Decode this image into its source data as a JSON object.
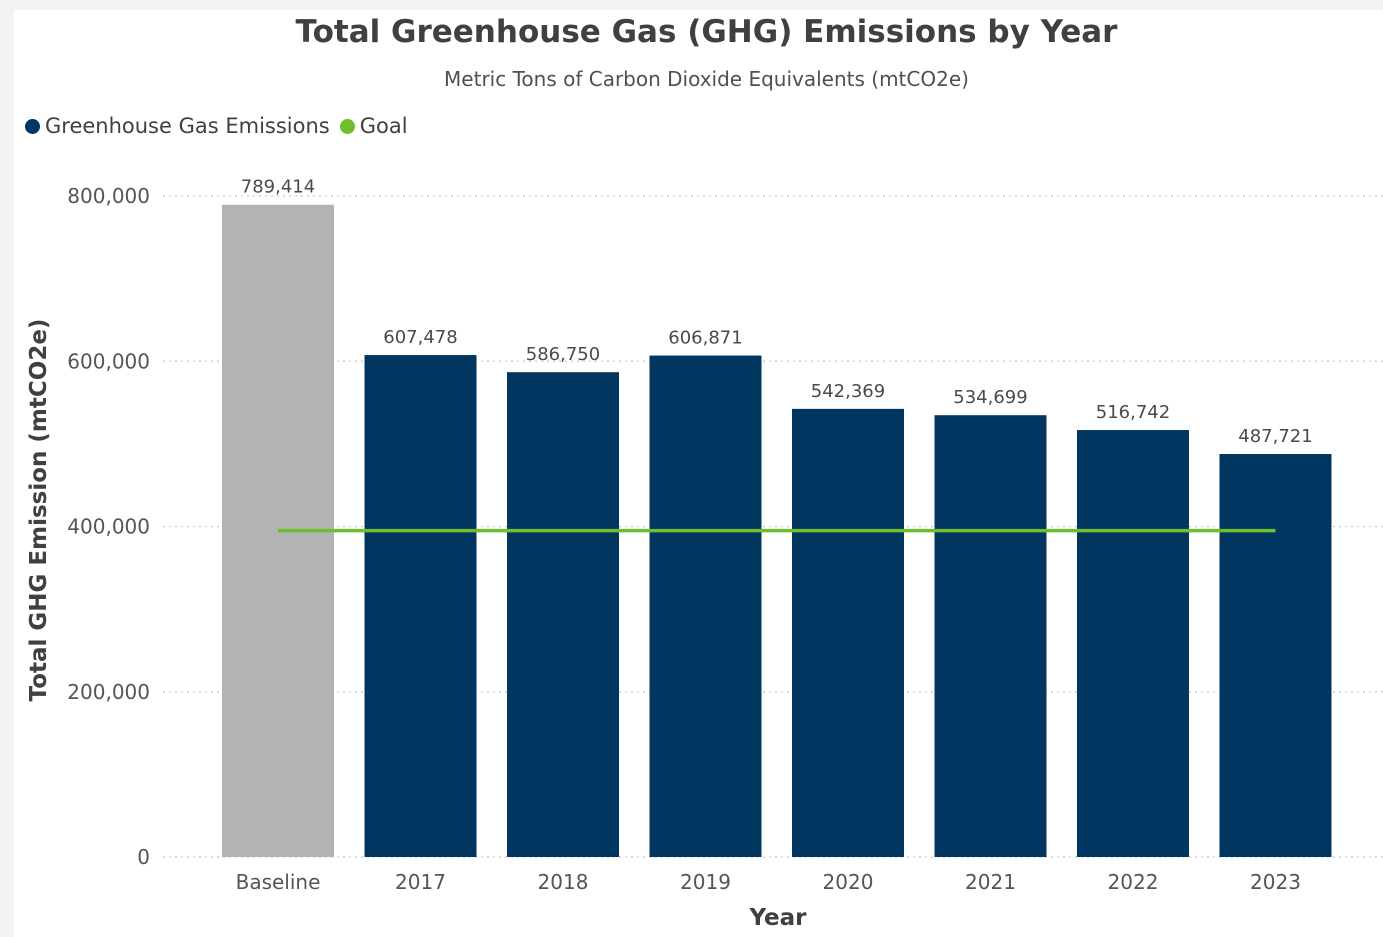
{
  "chart_data": {
    "type": "bar",
    "title": "Total Greenhouse Gas (GHG) Emissions by Year",
    "subtitle": "Metric Tons of Carbon Dioxide Equivalents (mtCO2e)",
    "xlabel": "Year",
    "ylabel": "Total GHG Emission (mtCO2e)",
    "categories": [
      "Baseline",
      "2017",
      "2018",
      "2019",
      "2020",
      "2021",
      "2022",
      "2023"
    ],
    "series": [
      {
        "name": "Greenhouse Gas Emissions",
        "values": [
          789414,
          607478,
          586750,
          606871,
          542369,
          534699,
          516742,
          487721
        ],
        "data_labels": [
          "789,414",
          "607,478",
          "586,750",
          "606,871",
          "542,369",
          "534,699",
          "516,742",
          "487,721"
        ]
      },
      {
        "name": "Goal",
        "type": "line",
        "value": 395000
      }
    ],
    "yticks": [
      0,
      200000,
      400000,
      600000,
      800000
    ],
    "ytick_labels": [
      "0",
      "200,000",
      "400,000",
      "600,000",
      "800,000"
    ],
    "ylim": [
      0,
      800000
    ],
    "grid": true,
    "legend_position": "top-left"
  },
  "colors": {
    "baseline_bar": "#b3b3b3",
    "emissions_bar": "#003660",
    "goal_line": "#6ebe2d",
    "grid": "#cfcfcf"
  }
}
